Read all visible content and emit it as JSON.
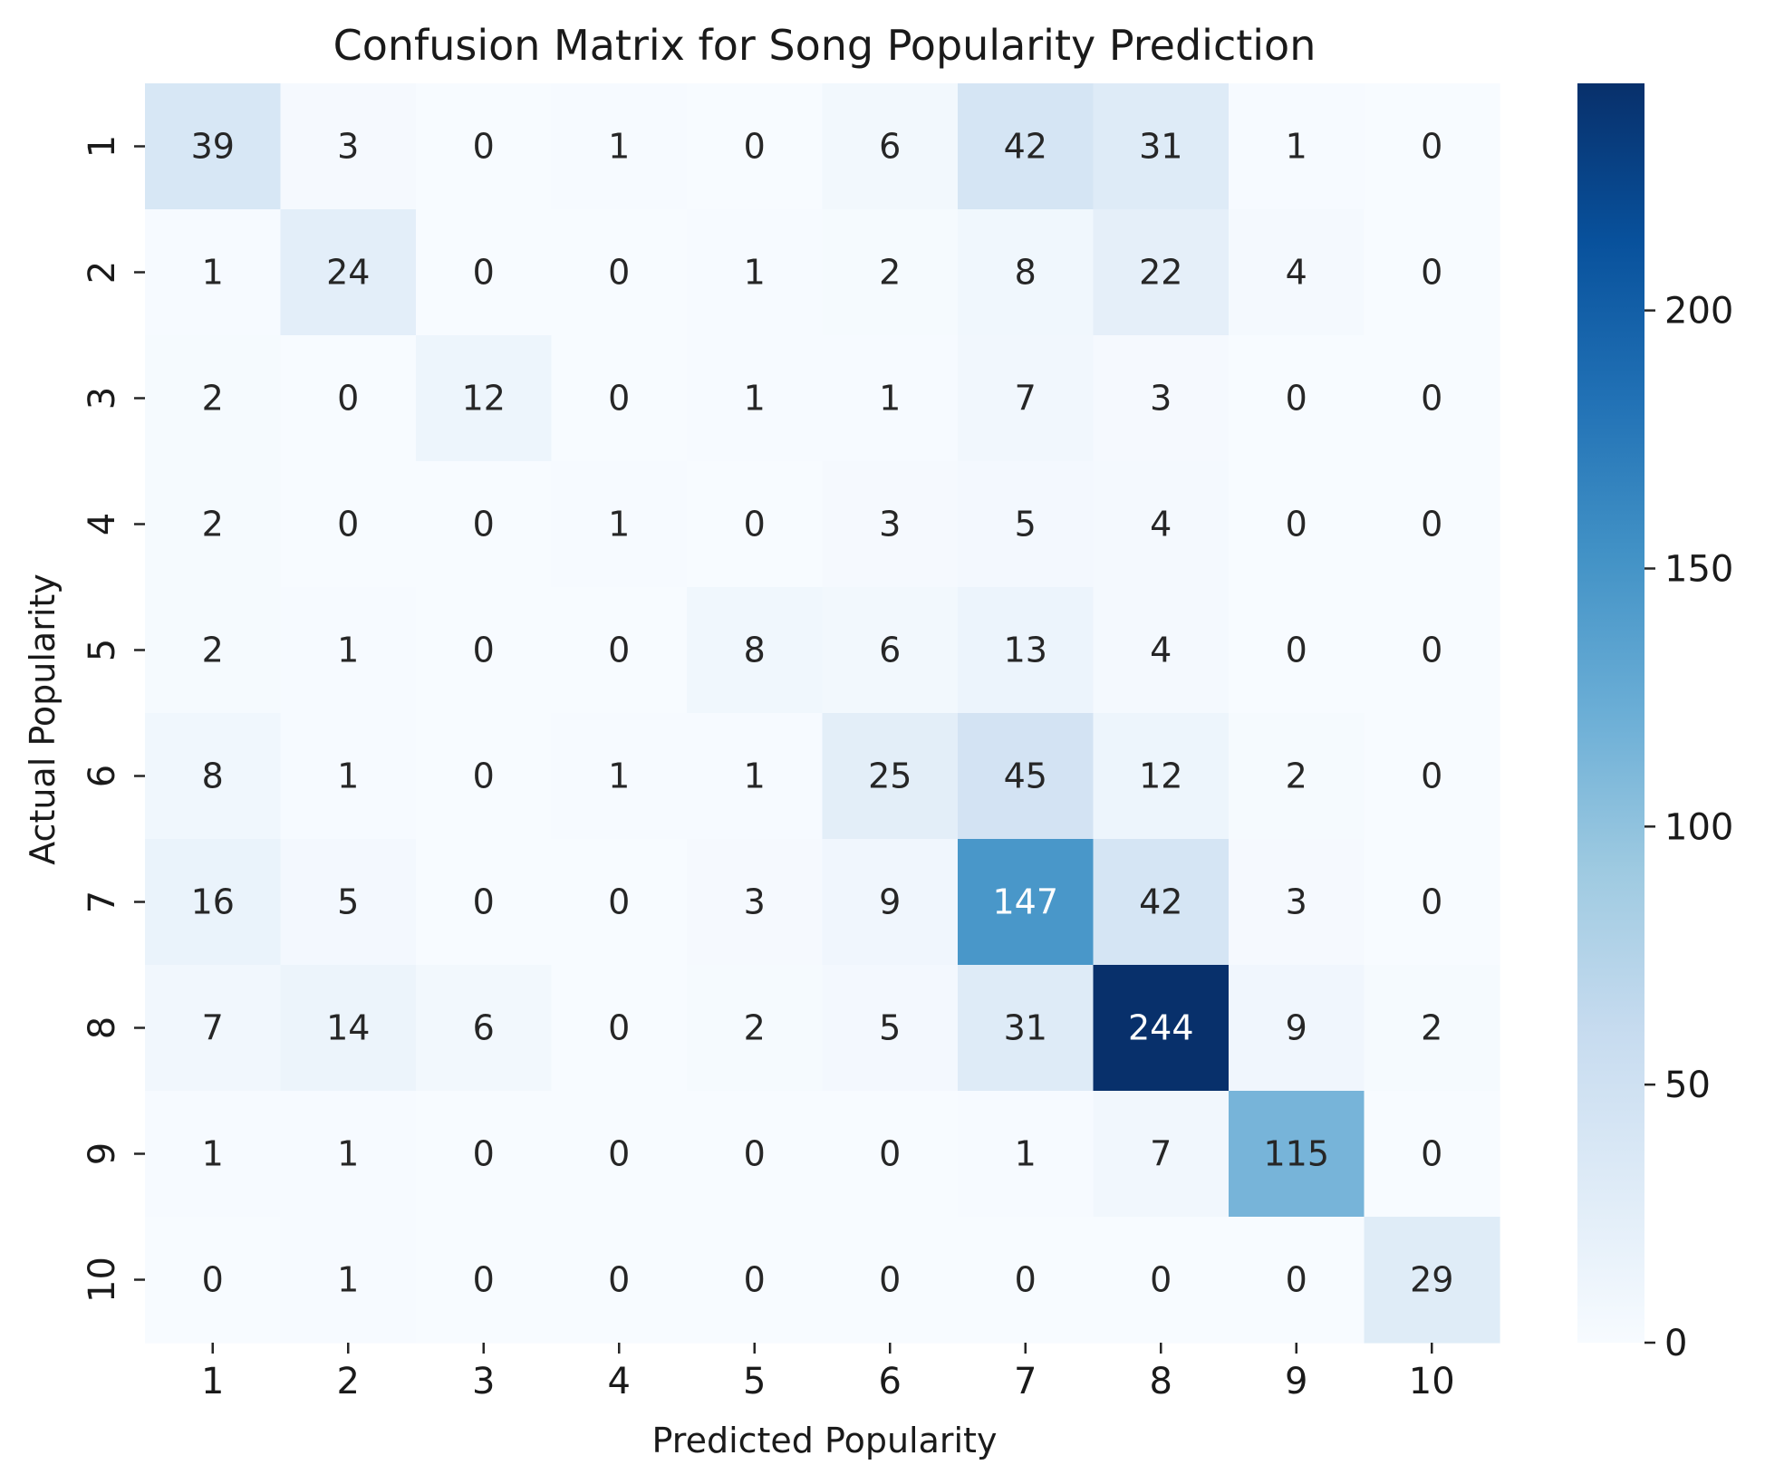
{
  "chart_data": {
    "type": "heatmap",
    "title": "Confusion Matrix for Song Popularity Prediction",
    "xlabel": "Predicted Popularity",
    "ylabel": "Actual Popularity",
    "x_categories": [
      "1",
      "2",
      "3",
      "4",
      "5",
      "6",
      "7",
      "8",
      "9",
      "10"
    ],
    "y_categories": [
      "1",
      "2",
      "3",
      "4",
      "5",
      "6",
      "7",
      "8",
      "9",
      "10"
    ],
    "values": [
      [
        39,
        3,
        0,
        1,
        0,
        6,
        42,
        31,
        1,
        0
      ],
      [
        1,
        24,
        0,
        0,
        1,
        2,
        8,
        22,
        4,
        0
      ],
      [
        2,
        0,
        12,
        0,
        1,
        1,
        7,
        3,
        0,
        0
      ],
      [
        2,
        0,
        0,
        1,
        0,
        3,
        5,
        4,
        0,
        0
      ],
      [
        2,
        1,
        0,
        0,
        8,
        6,
        13,
        4,
        0,
        0
      ],
      [
        8,
        1,
        0,
        1,
        1,
        25,
        45,
        12,
        2,
        0
      ],
      [
        16,
        5,
        0,
        0,
        3,
        9,
        147,
        42,
        3,
        0
      ],
      [
        7,
        14,
        6,
        0,
        2,
        5,
        31,
        244,
        9,
        2
      ],
      [
        1,
        1,
        0,
        0,
        0,
        0,
        1,
        7,
        115,
        0
      ],
      [
        0,
        1,
        0,
        0,
        0,
        0,
        0,
        0,
        0,
        29
      ]
    ],
    "colorscale": "Blues",
    "color_min": "#f7fbff",
    "color_max": "#08306b",
    "vmin": 0,
    "vmax": 244,
    "colorbar_ticks": [
      "0",
      "50",
      "100",
      "150",
      "200"
    ],
    "colorbar_tick_values": [
      0,
      50,
      100,
      150,
      200
    ]
  }
}
